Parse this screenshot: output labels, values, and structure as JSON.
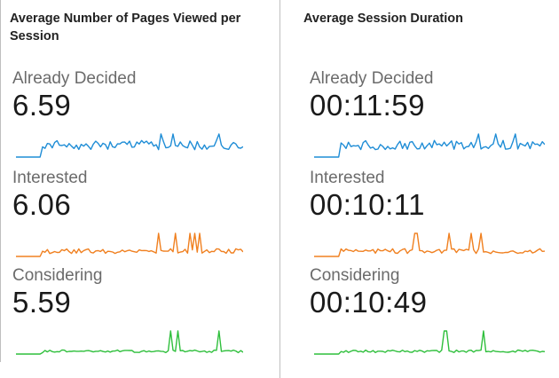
{
  "chart_data": [
    {
      "type": "line",
      "title": "Average Number of Pages Viewed per Session",
      "series": [
        {
          "name": "Already Decided",
          "value_label": "6.59",
          "color": "#1f8dd6"
        },
        {
          "name": "Interested",
          "value_label": "6.06",
          "color": "#f08020"
        },
        {
          "name": "Considering",
          "value_label": "5.59",
          "color": "#2fbf3c"
        }
      ]
    },
    {
      "type": "line",
      "title": "Average Session Duration",
      "series": [
        {
          "name": "Already Decided",
          "value_label": "00:11:59",
          "color": "#1f8dd6"
        },
        {
          "name": "Interested",
          "value_label": "00:10:11",
          "color": "#f08020"
        },
        {
          "name": "Considering",
          "value_label": "00:10:49",
          "color": "#2fbf3c"
        }
      ]
    }
  ]
}
